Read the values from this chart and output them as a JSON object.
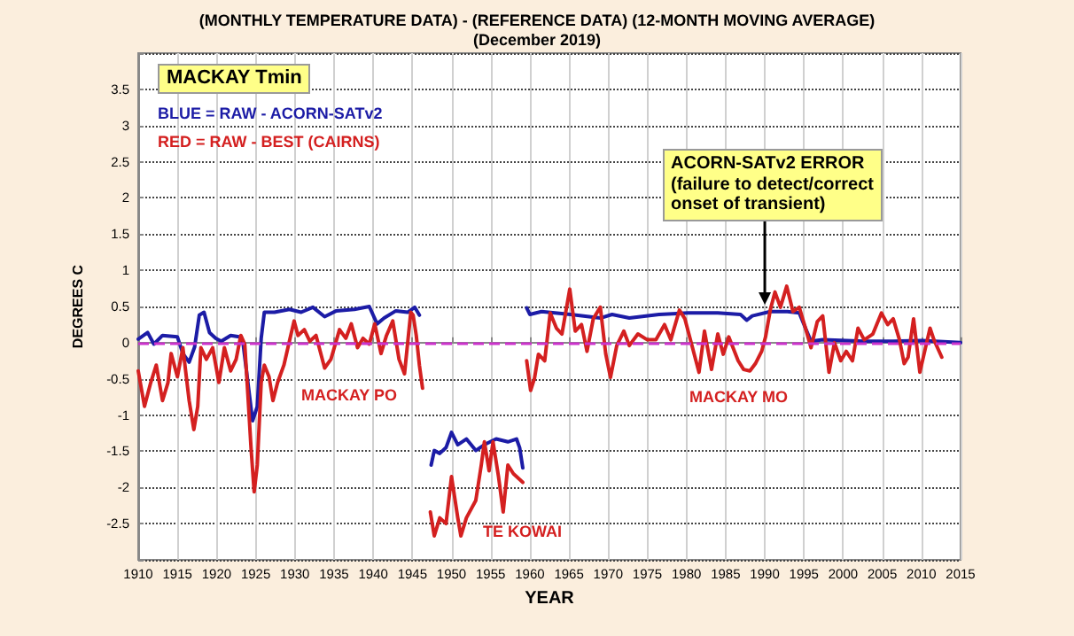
{
  "chart_data": {
    "type": "line",
    "title": "(MONTHLY TEMPERATURE DATA) - (REFERENCE DATA) (12-MONTH MOVING AVERAGE)",
    "subtitle": "(December 2019)",
    "xlabel": "YEAR",
    "ylabel": "DEGREES C",
    "xlim": [
      1910,
      2015
    ],
    "xticks": [
      1910,
      1915,
      1920,
      1925,
      1930,
      1935,
      1940,
      1945,
      1950,
      1955,
      1960,
      1965,
      1970,
      1975,
      1980,
      1985,
      1990,
      1995,
      2000,
      2005,
      2010,
      2015
    ],
    "ylim": [
      -3,
      4
    ],
    "yticks": [
      {
        "value": -3,
        "label": null
      },
      -2.5,
      -2,
      -1.5,
      -1,
      -0.5,
      0,
      0.5,
      1,
      1.5,
      2,
      2.5,
      3,
      3.5,
      {
        "value": 4,
        "label": null
      }
    ],
    "grid": true,
    "marker": "none",
    "ref_lines": [
      {
        "axis": "y",
        "value": 0,
        "color": "#cc33cc",
        "line_style": "dashed"
      }
    ],
    "annotations": [
      "MACKAY Tmin",
      "BLUE = RAW - ACORN-SATv2",
      "RED = RAW - BEST (CAIRNS)",
      "MACKAY PO",
      "TE KOWAI",
      "MACKAY MO",
      {
        "text": "ACORN-SATv2 ERROR\n(failure to detect/correct\nonset of transient)",
        "x": 1990,
        "y": 0.5
      }
    ],
    "series": [
      {
        "color": "#1c1ca6",
        "x": [
          1910,
          1911.2,
          1912,
          1913.1,
          1915,
          1915.7,
          1916.5,
          1917.2,
          1917.8,
          1918.4,
          1919.1,
          1919.9,
          1920.6,
          1921.8,
          1922.9,
          1923.4,
          1924,
          1924.6,
          1925.2,
          1925.7,
          1926.1,
          1927.4,
          1929.3,
          1930.8,
          1932.3,
          1933.8,
          1935.3,
          1937.6,
          1939.5,
          1940.5,
          1941.4,
          1942.9,
          1944.4,
          1945.3,
          1945.9,
          1946.6,
          1947.4,
          1947.8,
          1948.5,
          1949.3,
          1950,
          1950.8,
          1951.9,
          1953.1,
          1954.2,
          1955.7,
          1957.2,
          1958.3,
          1958.7,
          1959.1,
          1959.3,
          1959.6,
          1960,
          1961.5,
          1965.2,
          1969,
          1970.5,
          1972.7,
          1976.5,
          1980.2,
          1984,
          1986.9,
          1987.7,
          1988.4,
          1990.7,
          1992.9,
          1994.4,
          1995.2,
          1995.9,
          1997.4,
          2002.7,
          2006.4,
          2010.1,
          2015
        ],
        "values": [
          0.05,
          0.14,
          -0.02,
          0.1,
          0.08,
          -0.15,
          -0.27,
          -0.06,
          0.38,
          0.42,
          0.14,
          0.06,
          0.02,
          0.1,
          0.08,
          -0.02,
          -0.55,
          -1.08,
          -0.88,
          0.06,
          0.42,
          0.42,
          0.46,
          0.42,
          0.49,
          0.36,
          0.44,
          0.46,
          0.5,
          0.26,
          0.34,
          0.44,
          0.42,
          0.49,
          0.38,
          null,
          -1.69,
          -1.49,
          -1.53,
          -1.45,
          -1.24,
          -1.41,
          -1.33,
          -1.49,
          -1.41,
          -1.33,
          -1.37,
          -1.33,
          -1.45,
          -1.73,
          null,
          0.48,
          0.39,
          0.43,
          0.39,
          0.34,
          0.39,
          0.34,
          0.39,
          0.41,
          0.41,
          0.39,
          0.31,
          0.37,
          0.43,
          0.43,
          0.41,
          0.2,
          0.02,
          0.04,
          0.02,
          0.02,
          0.03,
          0
        ]
      },
      {
        "color": "#d42020",
        "x": [
          1910,
          1910.8,
          1911.6,
          1912.3,
          1913.1,
          1913.8,
          1914.2,
          1915,
          1915.7,
          1916.5,
          1917.1,
          1917.6,
          1918,
          1918.7,
          1919.5,
          1920.3,
          1921,
          1921.8,
          1922.5,
          1923.1,
          1923.6,
          1924,
          1924.4,
          1924.8,
          1925.2,
          1925.7,
          1926.1,
          1926.7,
          1927.2,
          1927.8,
          1928.6,
          1929.3,
          1929.9,
          1930.4,
          1931.2,
          1931.9,
          1932.7,
          1933.8,
          1934.6,
          1935.7,
          1936.5,
          1937.2,
          1938,
          1938.7,
          1939.5,
          1940.2,
          1941,
          1941.7,
          1942.5,
          1943.3,
          1944,
          1944.8,
          1945.1,
          1945.5,
          1945.9,
          1946.3,
          1946.8,
          1947.3,
          1947.8,
          1948.5,
          1949.3,
          1950,
          1950.8,
          1951.2,
          1951.9,
          1953.1,
          1953.8,
          1954.2,
          1954.8,
          1955.3,
          1956,
          1956.6,
          1957.2,
          1957.9,
          1958.7,
          1959.1,
          1959.3,
          1959.6,
          1960.1,
          1960.6,
          1961.1,
          1961.9,
          1962.6,
          1963.4,
          1964.1,
          1965.1,
          1965.8,
          1966.6,
          1967.3,
          1968.1,
          1969,
          1969.7,
          1970.3,
          1971.1,
          1972,
          1972.7,
          1973.8,
          1975,
          1976.1,
          1977.2,
          1978,
          1979.1,
          1979.8,
          1980.6,
          1981.6,
          1982.3,
          1983.2,
          1984,
          1984.7,
          1985.4,
          1986.6,
          1987.3,
          1988.1,
          1988.8,
          1989.6,
          1990.1,
          1990.7,
          1991.3,
          1992,
          1992.8,
          1993.6,
          1994.4,
          1995.2,
          1995.9,
          1996.7,
          1997.4,
          1998.2,
          1998.9,
          1999.7,
          2000.4,
          2001.2,
          2001.9,
          2002.7,
          2003.8,
          2004.9,
          2005.7,
          2006.4,
          2007.2,
          2007.8,
          2008.3,
          2009,
          2009.8,
          2010.5,
          2011.1,
          2011.6,
          2012.6
        ],
        "values": [
          -0.39,
          -0.88,
          -0.55,
          -0.31,
          -0.8,
          -0.55,
          -0.15,
          -0.47,
          -0.07,
          -0.8,
          -1.2,
          -0.88,
          -0.07,
          -0.23,
          -0.07,
          -0.55,
          -0.07,
          -0.39,
          -0.23,
          0.1,
          -0.02,
          -0.72,
          -1.45,
          -2.06,
          -1.69,
          -0.55,
          -0.31,
          -0.47,
          -0.8,
          -0.55,
          -0.31,
          0.02,
          0.3,
          0.1,
          0.18,
          0.02,
          0.1,
          -0.35,
          -0.23,
          0.18,
          0.06,
          0.26,
          -0.07,
          0.06,
          -0.02,
          0.26,
          -0.15,
          0.1,
          0.3,
          -0.23,
          -0.43,
          0.42,
          0.38,
          0.1,
          -0.31,
          -0.63,
          null,
          -2.34,
          -2.67,
          -2.42,
          -2.5,
          -1.85,
          -2.42,
          -2.67,
          -2.42,
          -2.18,
          -1.69,
          -1.37,
          -1.77,
          -1.37,
          -1.85,
          -2.34,
          -1.69,
          -1.81,
          -1.89,
          -1.93,
          null,
          -0.25,
          -0.66,
          -0.49,
          -0.16,
          -0.25,
          0.41,
          0.2,
          0.12,
          0.74,
          0.16,
          0.25,
          -0.12,
          0.33,
          0.49,
          -0.16,
          -0.48,
          -0.04,
          0.16,
          -0.04,
          0.12,
          0.04,
          0.04,
          0.25,
          0.04,
          0.45,
          0.33,
          0,
          -0.41,
          0.16,
          -0.37,
          0.12,
          -0.16,
          0.08,
          -0.25,
          -0.37,
          -0.39,
          -0.29,
          -0.12,
          0.08,
          0.45,
          0.7,
          0.49,
          0.78,
          0.43,
          0.49,
          0.2,
          -0.07,
          0.29,
          0.37,
          -0.41,
          0,
          -0.25,
          -0.12,
          -0.25,
          0.2,
          0.04,
          0.12,
          0.41,
          0.25,
          0.33,
          0.04,
          -0.29,
          -0.2,
          0.33,
          -0.41,
          -0.08,
          0.2,
          0.04,
          -0.2
        ]
      }
    ]
  }
}
